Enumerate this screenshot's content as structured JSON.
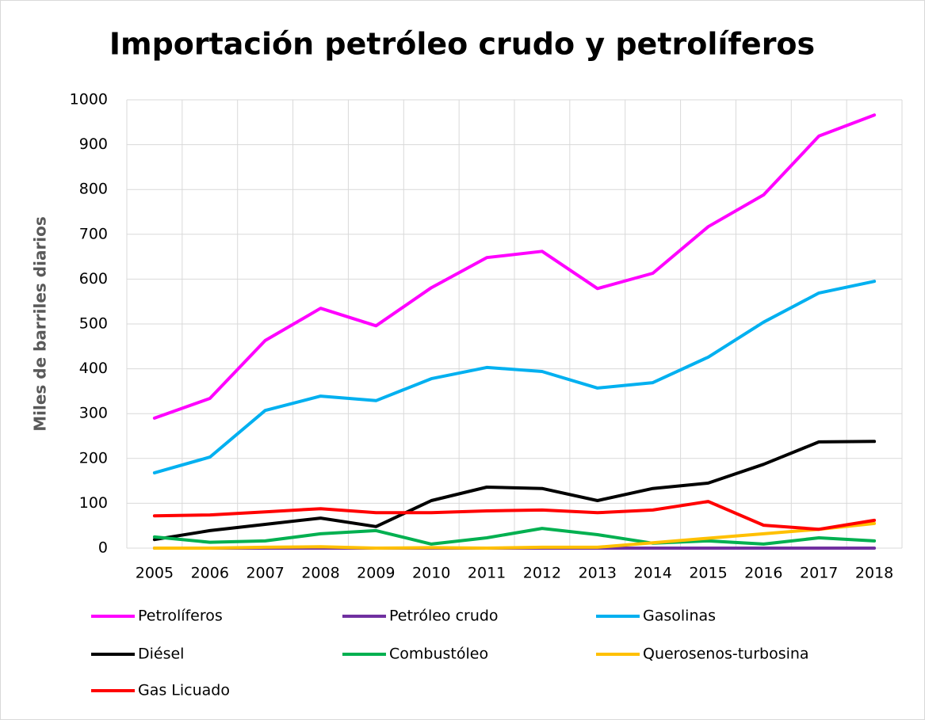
{
  "chart_data": {
    "type": "line",
    "title": "Importación petróleo crudo y petrolíferos",
    "y_label": "Miles de barriles diarios",
    "categories": [
      "2005",
      "2006",
      "2007",
      "2008",
      "2009",
      "2010",
      "2011",
      "2012",
      "2013",
      "2014",
      "2015",
      "2016",
      "2017",
      "2018"
    ],
    "series": [
      {
        "name": "Petrolíferos",
        "color": "#ff00ff",
        "values": [
          290,
          334,
          463,
          535,
          496,
          581,
          648,
          662,
          579,
          613,
          717,
          788,
          919,
          966
        ]
      },
      {
        "name": "Petróleo crudo",
        "color": "#7030a0",
        "values": [
          0,
          0,
          0,
          0,
          0,
          0,
          0,
          0,
          0,
          0,
          0,
          0,
          0,
          0
        ]
      },
      {
        "name": "Gasolinas",
        "color": "#00b0f0",
        "values": [
          168,
          203,
          307,
          339,
          329,
          378,
          403,
          394,
          357,
          369,
          426,
          504,
          569,
          595
        ]
      },
      {
        "name": "Diésel",
        "color": "#000000",
        "values": [
          19,
          39,
          53,
          67,
          48,
          106,
          136,
          133,
          106,
          133,
          145,
          187,
          237,
          238
        ]
      },
      {
        "name": "Combustóleo",
        "color": "#00b050",
        "values": [
          25,
          13,
          16,
          32,
          39,
          9,
          23,
          44,
          30,
          11,
          16,
          9,
          23,
          16
        ]
      },
      {
        "name": "Querosenos-turbosina",
        "color": "#ffc000",
        "values": [
          0,
          0,
          2,
          3,
          0,
          1,
          0,
          2,
          2,
          12,
          22,
          32,
          42,
          55
        ]
      },
      {
        "name": "Gas Licuado",
        "color": "#ff0000",
        "values": [
          72,
          74,
          81,
          88,
          79,
          79,
          83,
          85,
          79,
          85,
          104,
          51,
          42,
          62
        ]
      }
    ],
    "ylim": [
      0,
      1000
    ],
    "yticks": [
      0,
      100,
      200,
      300,
      400,
      500,
      600,
      700,
      800,
      900,
      1000
    ],
    "grid": true
  }
}
